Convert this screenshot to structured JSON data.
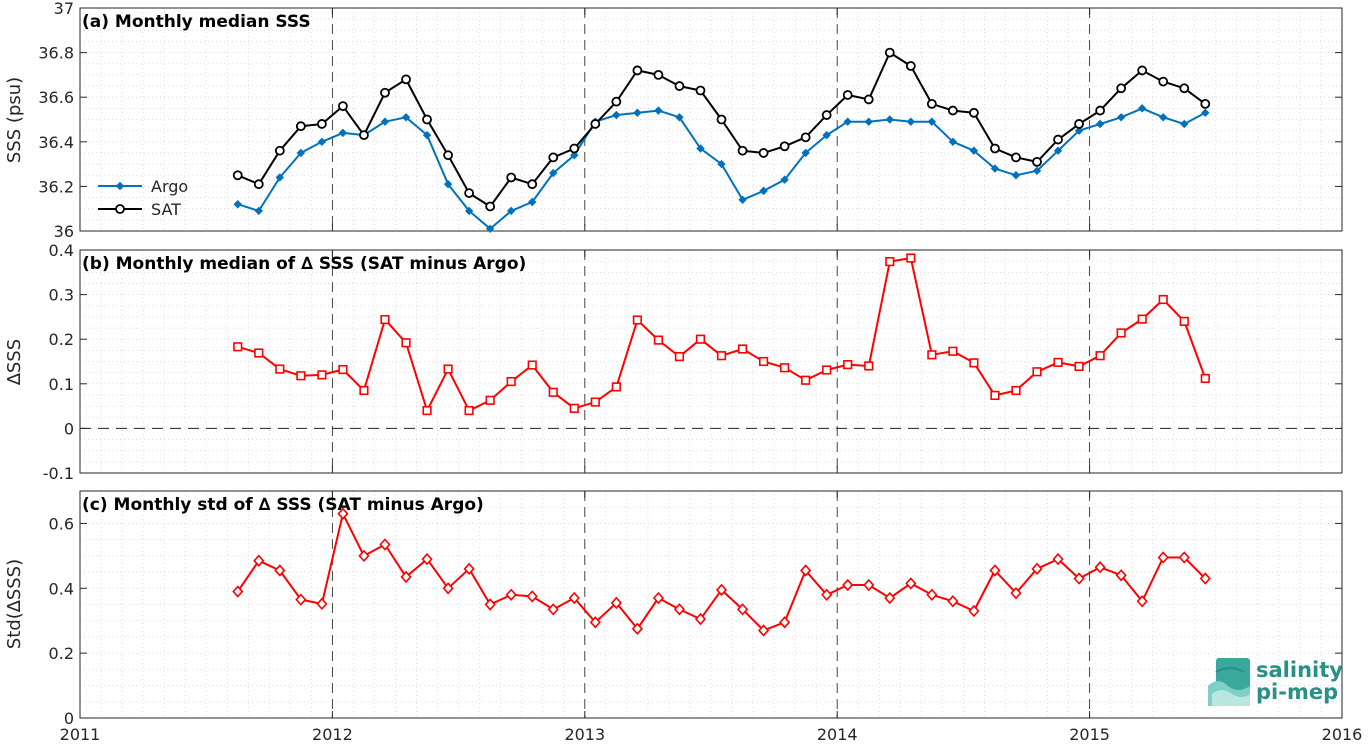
{
  "chart_data": [
    {
      "type": "line",
      "title": "(a) Monthly median SSS",
      "ylabel": "SSS (psu)",
      "ylim": [
        36,
        37
      ],
      "yticks": [
        36,
        36.2,
        36.4,
        36.6,
        36.8,
        37
      ],
      "ytick_labels": [
        "36",
        "36.2",
        "36.4",
        "36.6",
        "36.8",
        "37"
      ],
      "grid": true,
      "legend": "left",
      "series": [
        {
          "name": "Argo",
          "color": "#0072bd",
          "marker": "star",
          "x": [
            "2011-08",
            "2011-09",
            "2011-10",
            "2011-11",
            "2011-12",
            "2012-01",
            "2012-02",
            "2012-03",
            "2012-04",
            "2012-05",
            "2012-06",
            "2012-07",
            "2012-08",
            "2012-09",
            "2012-10",
            "2012-11",
            "2012-12",
            "2013-01",
            "2013-02",
            "2013-03",
            "2013-04",
            "2013-05",
            "2013-06",
            "2013-07",
            "2013-08",
            "2013-09",
            "2013-10",
            "2013-11",
            "2013-12",
            "2014-01",
            "2014-02",
            "2014-03",
            "2014-04",
            "2014-05",
            "2014-06",
            "2014-07",
            "2014-08",
            "2014-09",
            "2014-10",
            "2014-11",
            "2014-12",
            "2015-01",
            "2015-02",
            "2015-03",
            "2015-04",
            "2015-05",
            "2015-06"
          ],
          "values": [
            36.12,
            36.09,
            36.24,
            36.35,
            36.4,
            36.44,
            36.43,
            36.49,
            36.51,
            36.43,
            36.21,
            36.09,
            36.01,
            36.09,
            36.13,
            36.26,
            36.34,
            36.49,
            36.52,
            36.53,
            36.54,
            36.51,
            36.37,
            36.3,
            36.14,
            36.18,
            36.23,
            36.35,
            36.43,
            36.49,
            36.49,
            36.5,
            36.49,
            36.49,
            36.4,
            36.36,
            36.28,
            36.25,
            36.27,
            36.36,
            36.45,
            36.48,
            36.51,
            36.55,
            36.51,
            36.48,
            36.53
          ]
        },
        {
          "name": "SAT",
          "color": "#000000",
          "marker": "circle",
          "x": [
            "2011-08",
            "2011-09",
            "2011-10",
            "2011-11",
            "2011-12",
            "2012-01",
            "2012-02",
            "2012-03",
            "2012-04",
            "2012-05",
            "2012-06",
            "2012-07",
            "2012-08",
            "2012-09",
            "2012-10",
            "2012-11",
            "2012-12",
            "2013-01",
            "2013-02",
            "2013-03",
            "2013-04",
            "2013-05",
            "2013-06",
            "2013-07",
            "2013-08",
            "2013-09",
            "2013-10",
            "2013-11",
            "2013-12",
            "2014-01",
            "2014-02",
            "2014-03",
            "2014-04",
            "2014-05",
            "2014-06",
            "2014-07",
            "2014-08",
            "2014-09",
            "2014-10",
            "2014-11",
            "2014-12",
            "2015-01",
            "2015-02",
            "2015-03",
            "2015-04",
            "2015-05",
            "2015-06"
          ],
          "values": [
            36.25,
            36.21,
            36.36,
            36.47,
            36.48,
            36.56,
            36.43,
            36.62,
            36.68,
            36.5,
            36.34,
            36.17,
            36.11,
            36.24,
            36.21,
            36.33,
            36.37,
            36.48,
            36.58,
            36.72,
            36.7,
            36.65,
            36.63,
            36.5,
            36.36,
            36.35,
            36.38,
            36.42,
            36.52,
            36.61,
            36.59,
            36.8,
            36.74,
            36.57,
            36.54,
            36.53,
            36.37,
            36.33,
            36.31,
            36.41,
            36.48,
            36.54,
            36.64,
            36.72,
            36.67,
            36.64,
            36.57
          ]
        }
      ]
    },
    {
      "type": "line",
      "title": "(b) Monthly median of ∆ SSS (SAT minus Argo)",
      "ylabel": "∆SSS",
      "ylim": [
        -0.1,
        0.4
      ],
      "yticks": [
        -0.1,
        0,
        0.1,
        0.2,
        0.3,
        0.4
      ],
      "ytick_labels": [
        "-0.1",
        "0",
        "0.1",
        "0.2",
        "0.3",
        "0.4"
      ],
      "grid": true,
      "zero_line": true,
      "series": [
        {
          "color": "#ff0000",
          "marker": "square",
          "x": [
            "2011-08",
            "2011-09",
            "2011-10",
            "2011-11",
            "2011-12",
            "2012-01",
            "2012-02",
            "2012-03",
            "2012-04",
            "2012-05",
            "2012-06",
            "2012-07",
            "2012-08",
            "2012-09",
            "2012-10",
            "2012-11",
            "2012-12",
            "2013-01",
            "2013-02",
            "2013-03",
            "2013-04",
            "2013-05",
            "2013-06",
            "2013-07",
            "2013-08",
            "2013-09",
            "2013-10",
            "2013-11",
            "2013-12",
            "2014-01",
            "2014-02",
            "2014-03",
            "2014-04",
            "2014-05",
            "2014-06",
            "2014-07",
            "2014-08",
            "2014-09",
            "2014-10",
            "2014-11",
            "2014-12",
            "2015-01",
            "2015-02",
            "2015-03",
            "2015-04",
            "2015-05",
            "2015-06"
          ],
          "values": [
            0.183,
            0.169,
            0.133,
            0.118,
            0.12,
            0.132,
            0.085,
            0.244,
            0.192,
            0.04,
            0.133,
            0.04,
            0.063,
            0.105,
            0.142,
            0.081,
            0.045,
            0.059,
            0.093,
            0.243,
            0.198,
            0.161,
            0.2,
            0.163,
            0.178,
            0.15,
            0.136,
            0.108,
            0.131,
            0.143,
            0.14,
            0.374,
            0.382,
            0.165,
            0.173,
            0.147,
            0.074,
            0.085,
            0.127,
            0.148,
            0.139,
            0.163,
            0.214,
            0.245,
            0.289,
            0.24,
            0.112
          ]
        }
      ]
    },
    {
      "type": "line",
      "title": "(c) Monthly std of ∆ SSS (SAT minus Argo)",
      "ylabel": "Std(∆SSS)",
      "xlabel": "",
      "ylim": [
        0,
        0.7
      ],
      "yticks": [
        0,
        0.2,
        0.4,
        0.6
      ],
      "ytick_labels": [
        "0",
        "0.2",
        "0.4",
        "0.6"
      ],
      "xlim": [
        2011,
        2016
      ],
      "xticks": [
        2011,
        2012,
        2013,
        2014,
        2015,
        2016
      ],
      "xtick_labels": [
        "2011",
        "2012",
        "2013",
        "2014",
        "2015",
        "2016"
      ],
      "grid": true,
      "series": [
        {
          "color": "#ff0000",
          "marker": "diamond",
          "x": [
            "2011-08",
            "2011-09",
            "2011-10",
            "2011-11",
            "2011-12",
            "2012-01",
            "2012-02",
            "2012-03",
            "2012-04",
            "2012-05",
            "2012-06",
            "2012-07",
            "2012-08",
            "2012-09",
            "2012-10",
            "2012-11",
            "2012-12",
            "2013-01",
            "2013-02",
            "2013-03",
            "2013-04",
            "2013-05",
            "2013-06",
            "2013-07",
            "2013-08",
            "2013-09",
            "2013-10",
            "2013-11",
            "2013-12",
            "2014-01",
            "2014-02",
            "2014-03",
            "2014-04",
            "2014-05",
            "2014-06",
            "2014-07",
            "2014-08",
            "2014-09",
            "2014-10",
            "2014-11",
            "2014-12",
            "2015-01",
            "2015-02",
            "2015-03",
            "2015-04",
            "2015-05",
            "2015-06"
          ],
          "values": [
            0.39,
            0.485,
            0.455,
            0.365,
            0.352,
            0.63,
            0.5,
            0.535,
            0.435,
            0.49,
            0.4,
            0.46,
            0.35,
            0.38,
            0.375,
            0.335,
            0.37,
            0.295,
            0.355,
            0.275,
            0.37,
            0.335,
            0.305,
            0.395,
            0.335,
            0.27,
            0.295,
            0.455,
            0.38,
            0.41,
            0.41,
            0.37,
            0.415,
            0.38,
            0.36,
            0.33,
            0.455,
            0.385,
            0.46,
            0.49,
            0.43,
            0.465,
            0.44,
            0.36,
            0.495,
            0.495,
            0.43
          ]
        }
      ]
    }
  ],
  "logo": {
    "line1": "salinity",
    "line2": "pi-mep"
  }
}
